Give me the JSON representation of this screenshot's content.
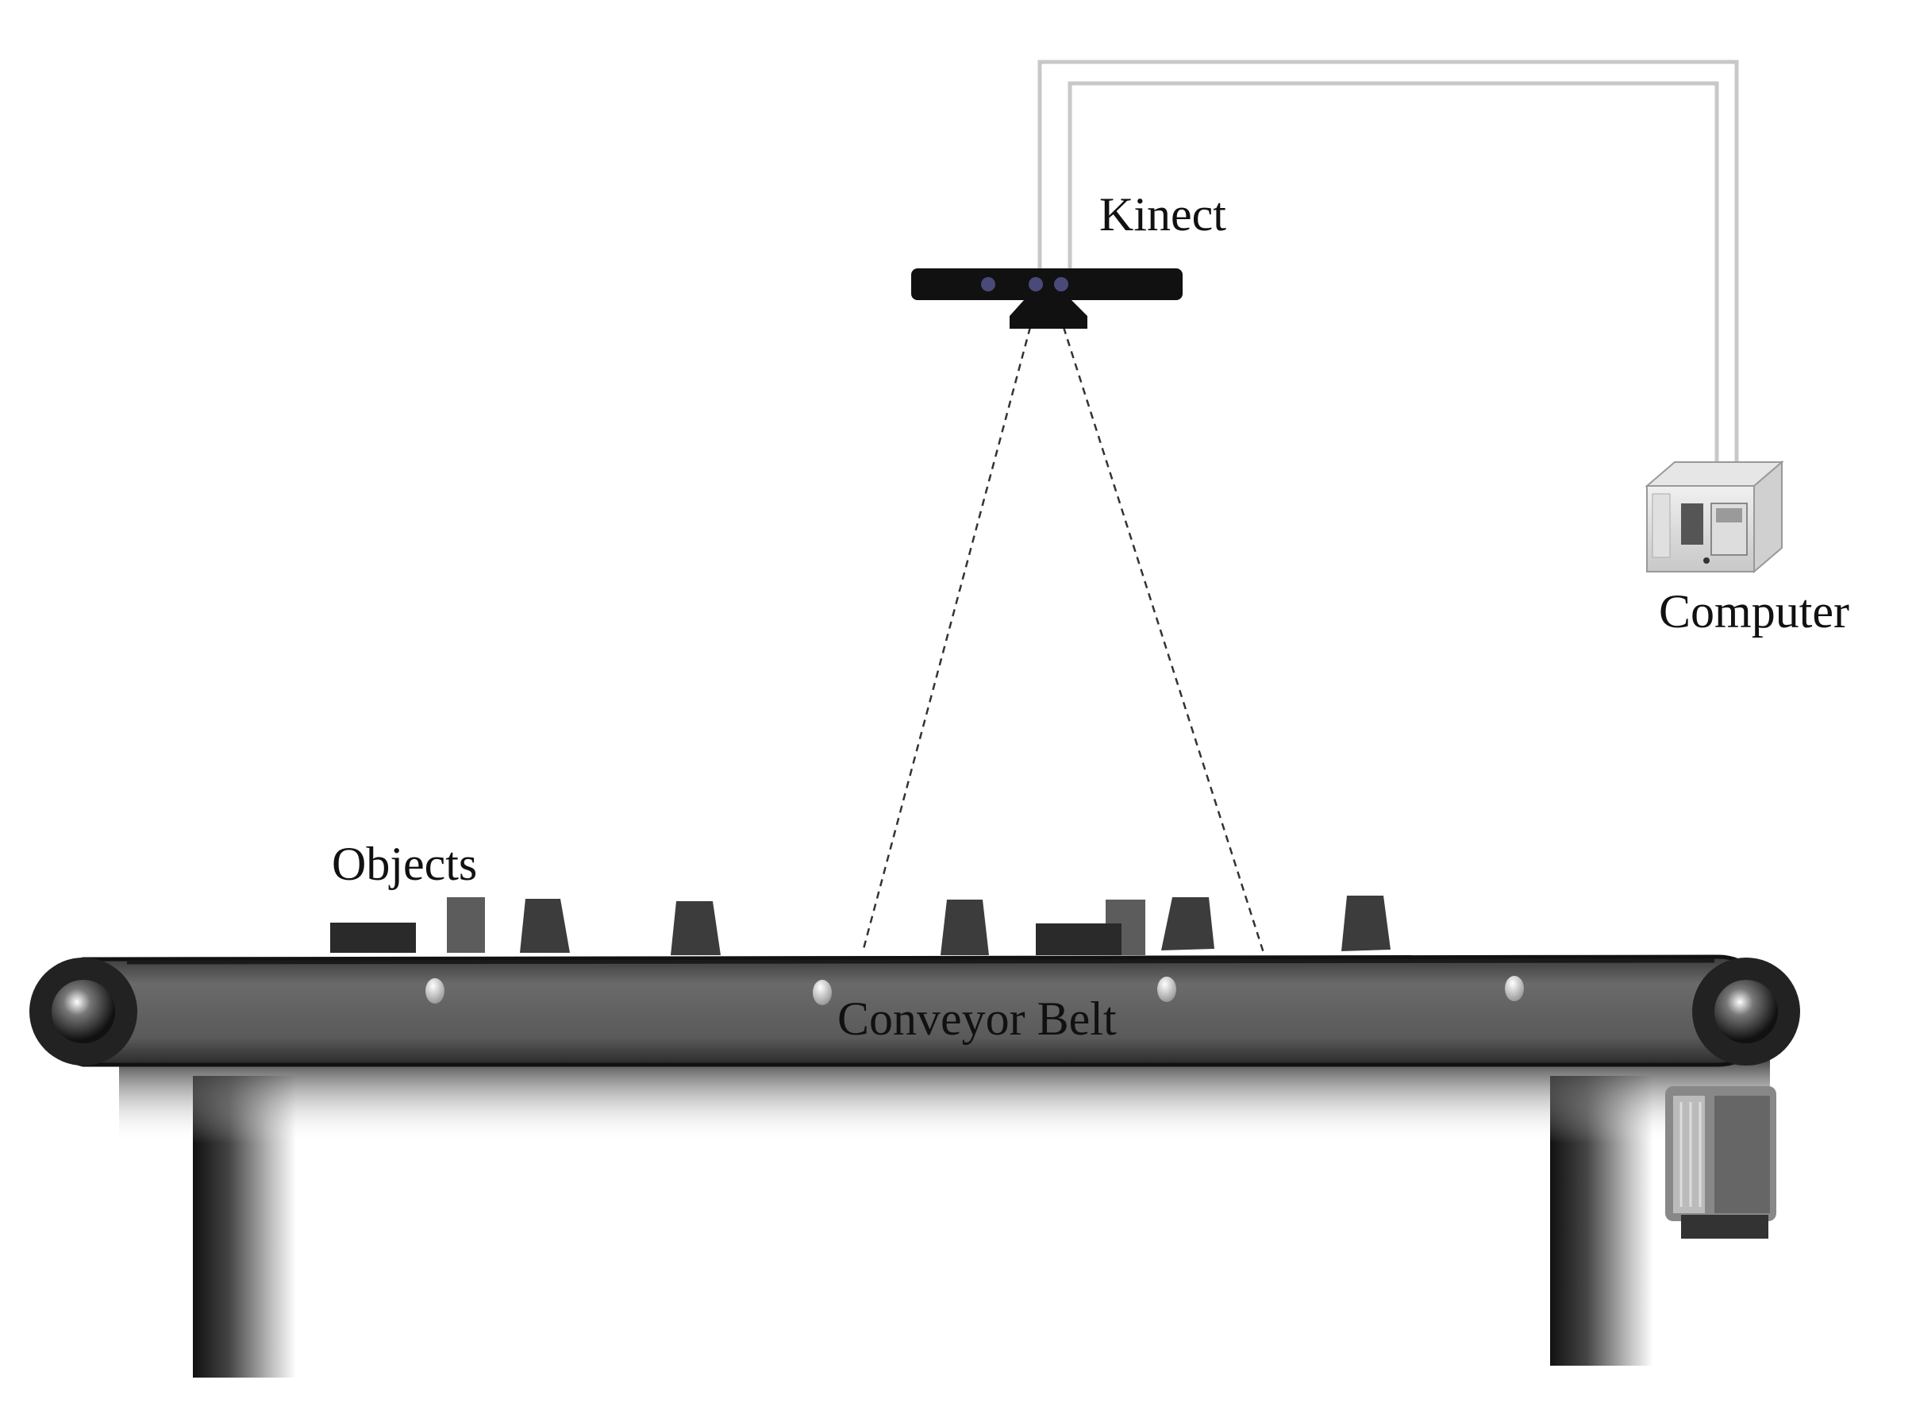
{
  "diagram": {
    "labels": {
      "kinect": "Kinect",
      "computer": "Computer",
      "objects": "Objects",
      "conveyor_belt": "Conveyor Belt"
    },
    "colors": {
      "background": "#ffffff",
      "sensor_body": "#111111",
      "sensor_lens": "#4a4a7a",
      "cable": "#c8c8c8",
      "belt": "#555555",
      "object_dark": "#2a2a2a",
      "object_mid": "#5c5c5c",
      "leg": "#333333"
    }
  }
}
